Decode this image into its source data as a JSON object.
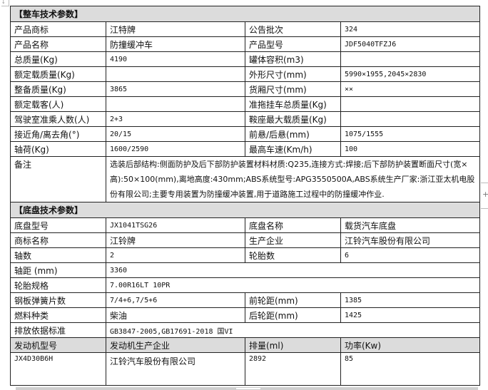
{
  "vehicle_section": {
    "title": "【整车技术参数】",
    "rows": [
      [
        "产品商标",
        "江特牌",
        "公告批次",
        "324"
      ],
      [
        "产品名称",
        "防撞缓冲车",
        "产品型号",
        "JDF5040TFZJ6"
      ],
      [
        "总质量(Kg)",
        "4190",
        "罐体容积(m3)",
        ""
      ],
      [
        "额定载质量(Kg)",
        "",
        "外形尺寸(mm)",
        "5990×1955,2045×2830"
      ],
      [
        "整备质量(Kg)",
        "3865",
        "货厢尺寸(mm)",
        "××"
      ],
      [
        "额定载客(人)",
        "",
        "准拖挂车总质量(Kg)",
        ""
      ],
      [
        "驾驶室准乘人数(人)",
        "2+3",
        "鞍座最大载质量(Kg)",
        ""
      ],
      [
        "接近角/离去角(°)",
        "20/15",
        "前悬/后悬(mm)",
        "1075/1555"
      ],
      [
        "轴荷(Kg)",
        "1600/2590",
        "最高车速(Km/h)",
        "100"
      ]
    ],
    "remark_label": "备注",
    "remark_text": "选装后部结构:侧面防护及后下部防护装置材料材质:Q235,连接方式:焊接;后下部防护装置断面尺寸(宽×高):50×100(mm),离地高度:430mm;ABS系统型号:APG3550500A,ABS系统生产厂家:浙江亚太机电股份有限公司;主要专用装置为防撞缓冲装置,用于道路施工过程中的防撞缓冲作业."
  },
  "chassis_section": {
    "title": "【底盘技术参数】",
    "rows": [
      [
        "底盘型号",
        "JX1041TSG26",
        "底盘名称",
        "载货汽车底盘"
      ],
      [
        "商标名称",
        "江铃牌",
        "生产企业",
        "江铃汽车股份有限公司"
      ],
      [
        "轴数",
        "2",
        "轮胎数",
        "6"
      ],
      [
        "轴距 (mm)",
        "3360"
      ],
      [
        "轮胎规格",
        "7.00R16LT 10PR"
      ],
      [
        "钢板弹簧片数",
        "7/4+6,7/5+6",
        "前轮距(mm)",
        "1385"
      ],
      [
        "燃料种类",
        "柴油",
        "后轮距(mm)",
        "1425"
      ],
      [
        "排放依据标准",
        "GB3847-2005,GB17691-2018 国VI"
      ]
    ],
    "engine_headers": [
      "发动机型号",
      "发动机生产企业",
      "排量(ml)",
      "功率(Kw)"
    ],
    "engine_row": [
      "JX4D30B6H",
      "江铃汽车股份有限公司",
      "2892",
      "85"
    ]
  }
}
